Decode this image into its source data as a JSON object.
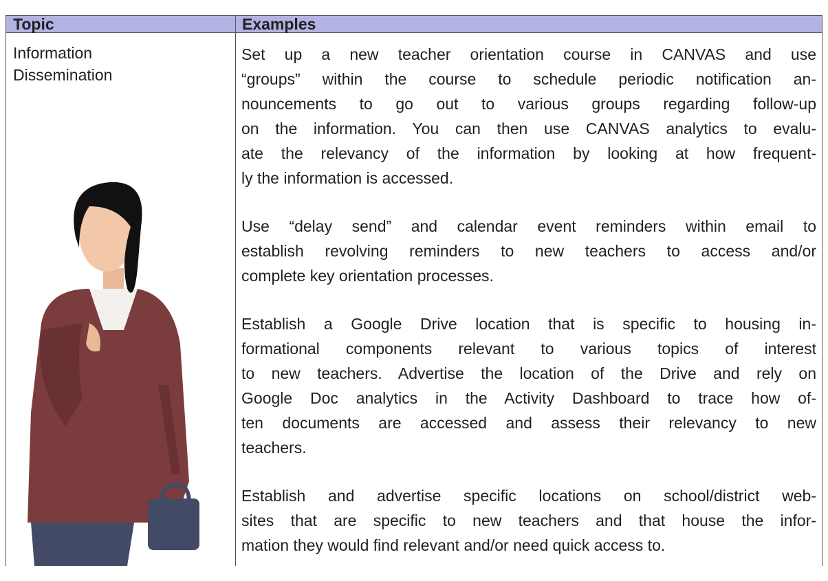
{
  "table": {
    "headers": [
      "Topic",
      "Examples"
    ],
    "rows": [
      {
        "topic": [
          "Information",
          "Dissemination"
        ],
        "examples": [
          [
            "Set up a new teacher orientation course in CANVAS and use",
            "“groups” within the course to schedule periodic notification an-",
            "nouncements to go out to various groups regarding follow-up",
            "on the information. You can then use CANVAS analytics to evalu-",
            "ate the relevancy of the information by looking at how frequent-",
            "ly the information is accessed."
          ],
          [
            "Use “delay send” and calendar event reminders within email to",
            "establish revolving reminders to new teachers to access and/or",
            "complete key orientation processes."
          ],
          [
            "Establish a Google Drive location that is specific to housing in-",
            "formational components relevant to various topics of interest",
            "to new teachers. Advertise the location of the Drive and rely on",
            "Google Doc analytics in the Activity Dashboard to trace how of-",
            "ten documents are accessed and assess their relevancy to new",
            "teachers."
          ],
          [
            "Establish and advertise specific locations on school/district web-",
            "sites that are specific to new teachers and that house the infor-",
            "mation they would find relevant and/or need quick access to."
          ]
        ]
      }
    ]
  }
}
